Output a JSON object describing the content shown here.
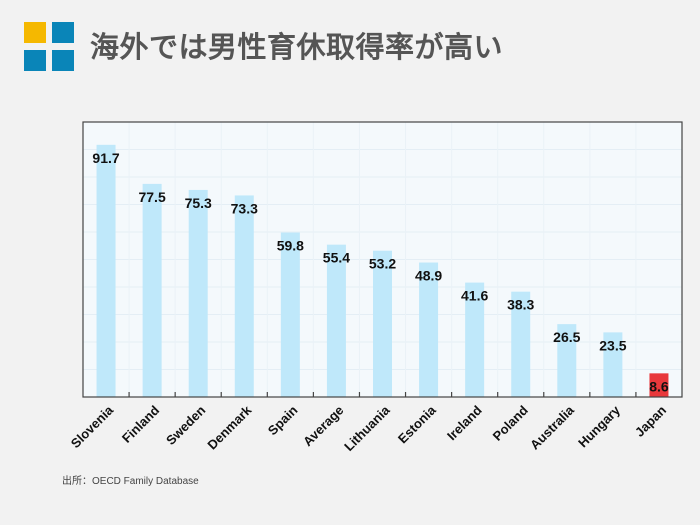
{
  "header": {
    "title": "海外では男性育休取得率が高い"
  },
  "logo": {
    "colors": [
      "#f5b800",
      "#0a85b8",
      "#0a85b8",
      "#0a85b8"
    ]
  },
  "source": "出所：OECD Family Database",
  "chart_data": {
    "type": "bar",
    "title": "",
    "xlabel": "",
    "ylabel": "",
    "ylim": [
      0,
      100
    ],
    "grid": true,
    "categories": [
      "Slovenia",
      "Finland",
      "Sweden",
      "Denmark",
      "Spain",
      "Average",
      "Lithuania",
      "Estonia",
      "Ireland",
      "Poland",
      "Australia",
      "Hungary",
      "Japan"
    ],
    "values": [
      91.7,
      77.5,
      75.3,
      73.3,
      59.8,
      55.4,
      53.2,
      48.9,
      41.6,
      38.3,
      26.5,
      23.5,
      8.6
    ],
    "labels": [
      "91.7",
      "77.5",
      "75.3",
      "73.3",
      "59.8",
      "55.4",
      "53.2",
      "48.9",
      "41.6",
      "38.3",
      "26.5",
      "23.5",
      "8.6"
    ],
    "colors": {
      "default": "#bfe8fa",
      "highlight": "#e8383b"
    },
    "highlight": "Japan"
  }
}
